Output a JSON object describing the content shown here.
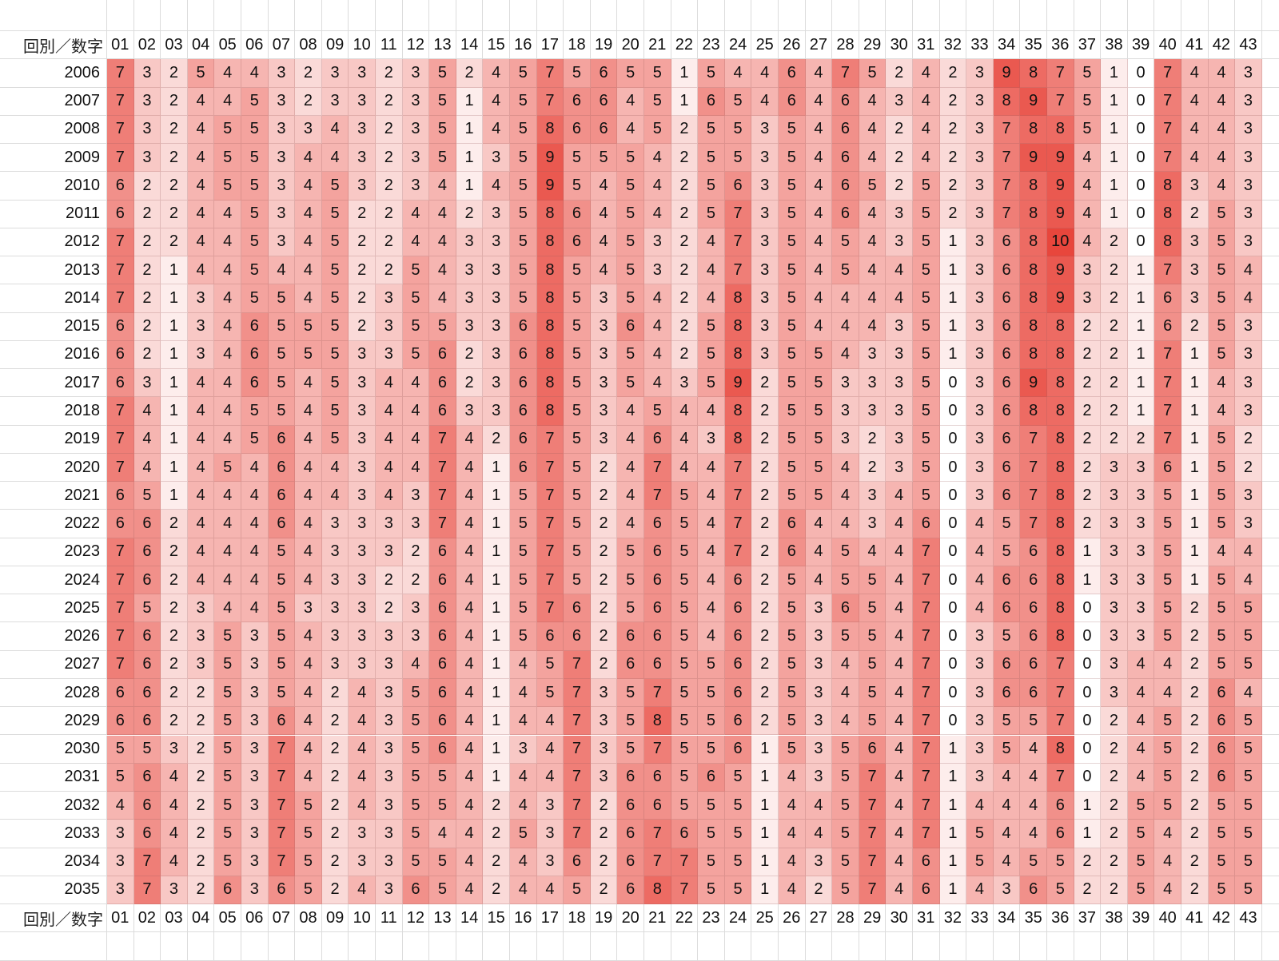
{
  "chart_data": {
    "type": "heatmap",
    "corner_label": "回別／数字",
    "columns": [
      "01",
      "02",
      "03",
      "04",
      "05",
      "06",
      "07",
      "08",
      "09",
      "10",
      "11",
      "12",
      "13",
      "14",
      "15",
      "16",
      "17",
      "18",
      "19",
      "20",
      "21",
      "22",
      "23",
      "24",
      "25",
      "26",
      "27",
      "28",
      "29",
      "30",
      "31",
      "32",
      "33",
      "34",
      "35",
      "36",
      "37",
      "38",
      "39",
      "40",
      "41",
      "42",
      "43"
    ],
    "rows": [
      "2006",
      "2007",
      "2008",
      "2009",
      "2010",
      "2011",
      "2012",
      "2013",
      "2014",
      "2015",
      "2016",
      "2017",
      "2018",
      "2019",
      "2020",
      "2021",
      "2022",
      "2023",
      "2024",
      "2025",
      "2026",
      "2027",
      "2028",
      "2029",
      "2030",
      "2031",
      "2032",
      "2033",
      "2034",
      "2035"
    ],
    "values": [
      [
        7,
        3,
        2,
        5,
        4,
        4,
        3,
        2,
        3,
        3,
        2,
        3,
        5,
        2,
        4,
        5,
        7,
        5,
        6,
        5,
        5,
        1,
        5,
        4,
        4,
        6,
        4,
        7,
        5,
        2,
        4,
        2,
        3,
        9,
        8,
        7,
        5,
        1,
        0,
        7,
        4,
        4,
        3
      ],
      [
        7,
        3,
        2,
        4,
        4,
        5,
        3,
        2,
        3,
        3,
        2,
        3,
        5,
        1,
        4,
        5,
        7,
        6,
        6,
        4,
        5,
        1,
        6,
        5,
        4,
        6,
        4,
        6,
        4,
        3,
        4,
        2,
        3,
        8,
        9,
        7,
        5,
        1,
        0,
        7,
        4,
        4,
        3
      ],
      [
        7,
        3,
        2,
        4,
        5,
        5,
        3,
        3,
        4,
        3,
        2,
        3,
        5,
        1,
        4,
        5,
        8,
        6,
        6,
        4,
        5,
        2,
        5,
        5,
        3,
        5,
        4,
        6,
        4,
        2,
        4,
        2,
        3,
        7,
        8,
        8,
        5,
        1,
        0,
        7,
        4,
        4,
        3
      ],
      [
        7,
        3,
        2,
        4,
        5,
        5,
        3,
        4,
        4,
        3,
        2,
        3,
        5,
        1,
        3,
        5,
        9,
        5,
        5,
        5,
        4,
        2,
        5,
        5,
        3,
        5,
        4,
        6,
        4,
        2,
        4,
        2,
        3,
        7,
        9,
        9,
        4,
        1,
        0,
        7,
        4,
        4,
        3
      ],
      [
        6,
        2,
        2,
        4,
        5,
        5,
        3,
        4,
        5,
        3,
        2,
        3,
        4,
        1,
        4,
        5,
        9,
        5,
        4,
        5,
        4,
        2,
        5,
        6,
        3,
        5,
        4,
        6,
        5,
        2,
        5,
        2,
        3,
        7,
        8,
        9,
        4,
        1,
        0,
        8,
        3,
        4,
        3
      ],
      [
        6,
        2,
        2,
        4,
        4,
        5,
        3,
        4,
        5,
        2,
        2,
        4,
        4,
        2,
        3,
        5,
        8,
        6,
        4,
        5,
        4,
        2,
        5,
        7,
        3,
        5,
        4,
        6,
        4,
        3,
        5,
        2,
        3,
        7,
        8,
        9,
        4,
        1,
        0,
        8,
        2,
        5,
        3
      ],
      [
        7,
        2,
        2,
        4,
        4,
        5,
        3,
        4,
        5,
        2,
        2,
        4,
        4,
        3,
        3,
        5,
        8,
        6,
        4,
        5,
        3,
        2,
        4,
        7,
        3,
        5,
        4,
        5,
        4,
        3,
        5,
        1,
        3,
        6,
        8,
        10,
        4,
        2,
        0,
        8,
        3,
        5,
        3
      ],
      [
        7,
        2,
        1,
        4,
        4,
        5,
        4,
        4,
        5,
        2,
        2,
        5,
        4,
        3,
        3,
        5,
        8,
        5,
        4,
        5,
        3,
        2,
        4,
        7,
        3,
        5,
        4,
        5,
        4,
        4,
        5,
        1,
        3,
        6,
        8,
        9,
        3,
        2,
        1,
        7,
        3,
        5,
        4
      ],
      [
        7,
        2,
        1,
        3,
        4,
        5,
        5,
        4,
        5,
        2,
        3,
        5,
        4,
        3,
        3,
        5,
        8,
        5,
        3,
        5,
        4,
        2,
        4,
        8,
        3,
        5,
        4,
        4,
        4,
        4,
        5,
        1,
        3,
        6,
        8,
        9,
        3,
        2,
        1,
        6,
        3,
        5,
        4
      ],
      [
        6,
        2,
        1,
        3,
        4,
        6,
        5,
        5,
        5,
        2,
        3,
        5,
        5,
        3,
        3,
        6,
        8,
        5,
        3,
        6,
        4,
        2,
        5,
        8,
        3,
        5,
        4,
        4,
        4,
        3,
        5,
        1,
        3,
        6,
        8,
        8,
        2,
        2,
        1,
        6,
        2,
        5,
        3
      ],
      [
        6,
        2,
        1,
        3,
        4,
        6,
        5,
        5,
        5,
        3,
        3,
        5,
        6,
        2,
        3,
        6,
        8,
        5,
        3,
        5,
        4,
        2,
        5,
        8,
        3,
        5,
        5,
        4,
        3,
        3,
        5,
        1,
        3,
        6,
        8,
        8,
        2,
        2,
        1,
        7,
        1,
        5,
        3
      ],
      [
        6,
        3,
        1,
        4,
        4,
        6,
        5,
        4,
        5,
        3,
        4,
        4,
        6,
        2,
        3,
        6,
        8,
        5,
        3,
        5,
        4,
        3,
        5,
        9,
        2,
        5,
        5,
        3,
        3,
        3,
        5,
        0,
        3,
        6,
        9,
        8,
        2,
        2,
        1,
        7,
        1,
        4,
        3
      ],
      [
        7,
        4,
        1,
        4,
        4,
        5,
        5,
        4,
        5,
        3,
        4,
        4,
        6,
        3,
        3,
        6,
        8,
        5,
        3,
        4,
        5,
        4,
        4,
        8,
        2,
        5,
        5,
        3,
        3,
        3,
        5,
        0,
        3,
        6,
        8,
        8,
        2,
        2,
        1,
        7,
        1,
        4,
        3
      ],
      [
        7,
        4,
        1,
        4,
        4,
        5,
        6,
        4,
        5,
        3,
        4,
        4,
        7,
        4,
        2,
        6,
        7,
        5,
        3,
        4,
        6,
        4,
        3,
        8,
        2,
        5,
        5,
        3,
        2,
        3,
        5,
        0,
        3,
        6,
        7,
        8,
        2,
        2,
        2,
        7,
        1,
        5,
        2
      ],
      [
        7,
        4,
        1,
        4,
        5,
        4,
        6,
        4,
        4,
        3,
        4,
        4,
        7,
        4,
        1,
        6,
        7,
        5,
        2,
        4,
        7,
        4,
        4,
        7,
        2,
        5,
        5,
        4,
        2,
        3,
        5,
        0,
        3,
        6,
        7,
        8,
        2,
        3,
        3,
        6,
        1,
        5,
        2
      ],
      [
        6,
        5,
        1,
        4,
        4,
        4,
        6,
        4,
        4,
        3,
        4,
        3,
        7,
        4,
        1,
        5,
        7,
        5,
        2,
        4,
        7,
        5,
        4,
        7,
        2,
        5,
        5,
        4,
        3,
        4,
        5,
        0,
        3,
        6,
        7,
        8,
        2,
        3,
        3,
        5,
        1,
        5,
        3
      ],
      [
        6,
        6,
        2,
        4,
        4,
        4,
        6,
        4,
        3,
        3,
        3,
        3,
        7,
        4,
        1,
        5,
        7,
        5,
        2,
        4,
        6,
        5,
        4,
        7,
        2,
        6,
        4,
        4,
        3,
        4,
        6,
        0,
        4,
        5,
        7,
        8,
        2,
        3,
        3,
        5,
        1,
        5,
        3
      ],
      [
        7,
        6,
        2,
        4,
        4,
        4,
        5,
        4,
        3,
        3,
        3,
        2,
        6,
        4,
        1,
        5,
        7,
        5,
        2,
        5,
        6,
        5,
        4,
        7,
        2,
        6,
        4,
        5,
        4,
        4,
        7,
        0,
        4,
        5,
        6,
        8,
        1,
        3,
        3,
        5,
        1,
        4,
        4
      ],
      [
        7,
        6,
        2,
        4,
        4,
        4,
        5,
        4,
        3,
        3,
        2,
        2,
        6,
        4,
        1,
        5,
        7,
        5,
        2,
        5,
        6,
        5,
        4,
        6,
        2,
        5,
        4,
        5,
        5,
        4,
        7,
        0,
        4,
        6,
        6,
        8,
        1,
        3,
        3,
        5,
        1,
        5,
        4
      ],
      [
        7,
        5,
        2,
        3,
        4,
        4,
        5,
        3,
        3,
        3,
        2,
        3,
        6,
        4,
        1,
        5,
        7,
        6,
        2,
        5,
        6,
        5,
        4,
        6,
        2,
        5,
        3,
        6,
        5,
        4,
        7,
        0,
        4,
        6,
        6,
        8,
        0,
        3,
        3,
        5,
        2,
        5,
        5
      ],
      [
        7,
        6,
        2,
        3,
        5,
        3,
        5,
        4,
        3,
        3,
        3,
        3,
        6,
        4,
        1,
        5,
        6,
        6,
        2,
        6,
        6,
        5,
        4,
        6,
        2,
        5,
        3,
        5,
        5,
        4,
        7,
        0,
        3,
        5,
        6,
        8,
        0,
        3,
        3,
        5,
        2,
        5,
        5
      ],
      [
        7,
        6,
        2,
        3,
        5,
        3,
        5,
        4,
        3,
        3,
        3,
        4,
        6,
        4,
        1,
        4,
        5,
        7,
        2,
        6,
        6,
        5,
        5,
        6,
        2,
        5,
        3,
        4,
        5,
        4,
        7,
        0,
        3,
        6,
        6,
        7,
        0,
        3,
        4,
        4,
        2,
        5,
        5
      ],
      [
        6,
        6,
        2,
        2,
        5,
        3,
        5,
        4,
        2,
        4,
        3,
        5,
        6,
        4,
        1,
        4,
        5,
        7,
        3,
        5,
        7,
        5,
        5,
        6,
        2,
        5,
        3,
        4,
        5,
        4,
        7,
        0,
        3,
        6,
        6,
        7,
        0,
        3,
        4,
        4,
        2,
        6,
        4
      ],
      [
        6,
        6,
        2,
        2,
        5,
        3,
        6,
        4,
        2,
        4,
        3,
        5,
        6,
        4,
        1,
        4,
        4,
        7,
        3,
        5,
        8,
        5,
        5,
        6,
        2,
        5,
        3,
        4,
        5,
        4,
        7,
        0,
        3,
        5,
        5,
        7,
        0,
        2,
        4,
        5,
        2,
        6,
        5
      ],
      [
        5,
        5,
        3,
        2,
        5,
        3,
        7,
        4,
        2,
        4,
        3,
        5,
        6,
        4,
        1,
        3,
        4,
        7,
        3,
        5,
        7,
        5,
        5,
        6,
        1,
        5,
        3,
        5,
        6,
        4,
        7,
        1,
        3,
        5,
        4,
        8,
        0,
        2,
        4,
        5,
        2,
        6,
        5
      ],
      [
        5,
        6,
        4,
        2,
        5,
        3,
        7,
        4,
        2,
        4,
        3,
        5,
        5,
        4,
        1,
        4,
        4,
        7,
        3,
        6,
        6,
        5,
        6,
        5,
        1,
        4,
        3,
        5,
        7,
        4,
        7,
        1,
        3,
        4,
        4,
        7,
        0,
        2,
        4,
        5,
        2,
        6,
        5
      ],
      [
        4,
        6,
        4,
        2,
        5,
        3,
        7,
        5,
        2,
        4,
        3,
        5,
        5,
        4,
        2,
        4,
        3,
        7,
        2,
        6,
        6,
        5,
        5,
        5,
        1,
        4,
        4,
        5,
        7,
        4,
        7,
        1,
        4,
        4,
        4,
        6,
        1,
        2,
        5,
        5,
        2,
        5,
        5
      ],
      [
        3,
        6,
        4,
        2,
        5,
        3,
        7,
        5,
        2,
        3,
        3,
        5,
        4,
        4,
        2,
        5,
        3,
        7,
        2,
        6,
        7,
        6,
        5,
        5,
        1,
        4,
        4,
        5,
        7,
        4,
        7,
        1,
        5,
        4,
        4,
        6,
        1,
        2,
        5,
        4,
        2,
        5,
        5
      ],
      [
        3,
        7,
        4,
        2,
        5,
        3,
        7,
        5,
        2,
        3,
        3,
        5,
        5,
        4,
        2,
        4,
        3,
        6,
        2,
        6,
        7,
        7,
        5,
        5,
        1,
        4,
        3,
        5,
        7,
        4,
        6,
        1,
        5,
        4,
        5,
        5,
        2,
        2,
        5,
        4,
        2,
        5,
        5
      ],
      [
        3,
        7,
        3,
        2,
        6,
        3,
        6,
        5,
        2,
        4,
        3,
        6,
        5,
        4,
        2,
        4,
        4,
        5,
        2,
        6,
        8,
        7,
        5,
        5,
        1,
        4,
        2,
        5,
        7,
        4,
        6,
        1,
        4,
        3,
        6,
        5,
        2,
        2,
        5,
        4,
        2,
        5,
        5
      ]
    ],
    "color_scale": {
      "min": 0,
      "max": 10,
      "min_color": "#ffffff",
      "max_color": "#e8463c"
    },
    "grid": true
  }
}
